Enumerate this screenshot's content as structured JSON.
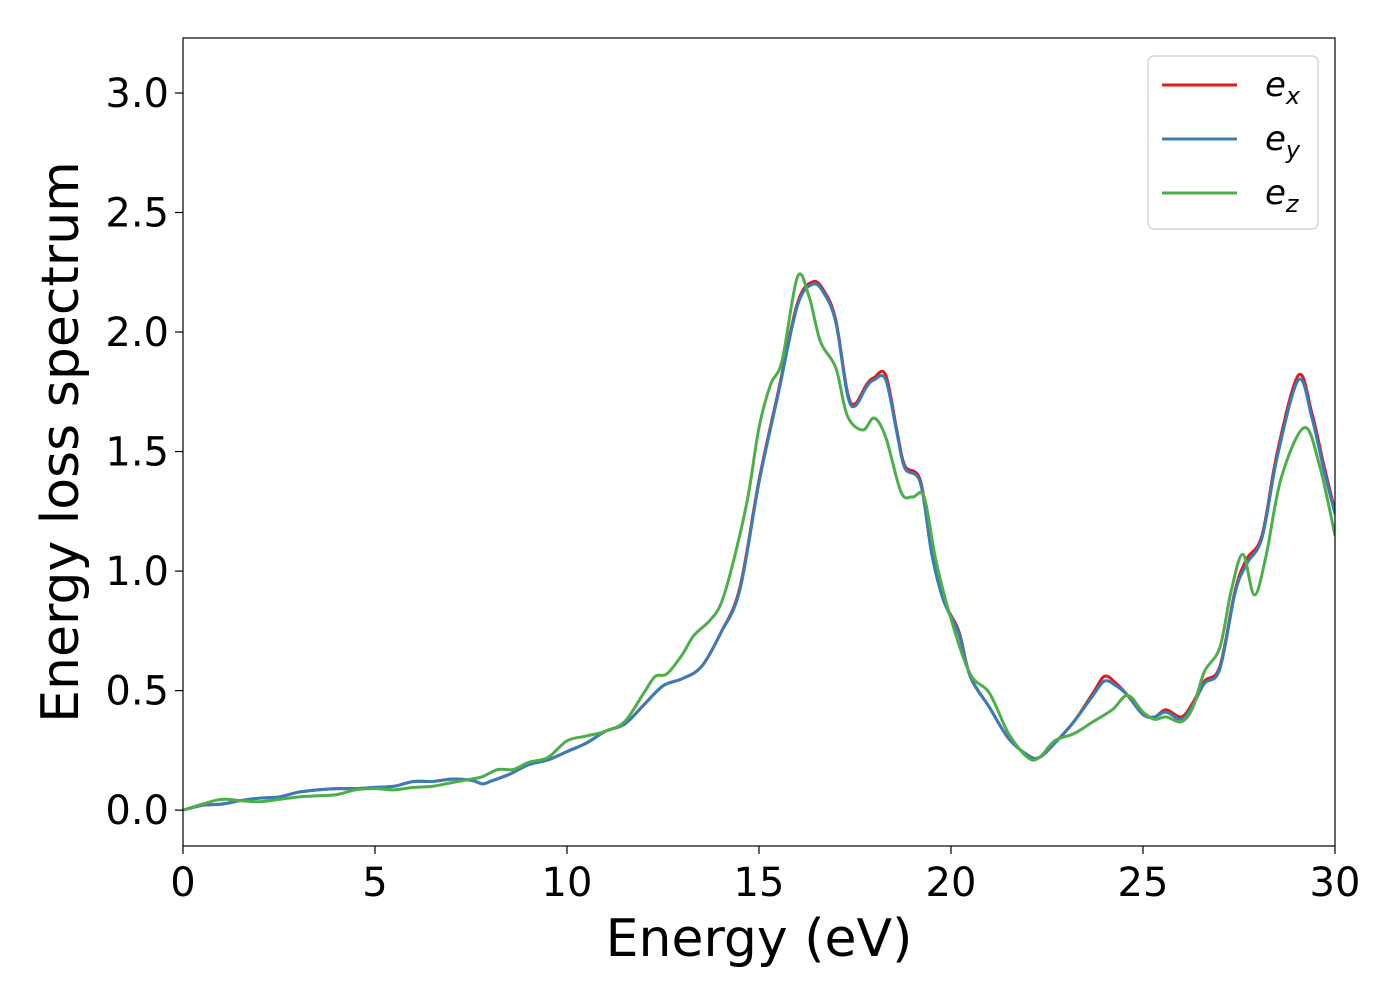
{
  "chart_data": {
    "type": "line",
    "title": "",
    "xlabel": "Energy (eV)",
    "ylabel": "Energy loss spectrum",
    "xlim": [
      0,
      30
    ],
    "ylim": [
      -0.15,
      3.23
    ],
    "xticks": [
      0,
      5,
      10,
      15,
      20,
      25,
      30
    ],
    "xtick_labels": [
      "0",
      "5",
      "10",
      "15",
      "20",
      "25",
      "30"
    ],
    "yticks": [
      0.0,
      0.5,
      1.0,
      1.5,
      2.0,
      2.5,
      3.0
    ],
    "ytick_labels": [
      "0.0",
      "0.5",
      "1.0",
      "1.5",
      "2.0",
      "2.5",
      "3.0"
    ],
    "grid": false,
    "legend_position": "top-right",
    "series": [
      {
        "name_base": "e",
        "name_sub": "x",
        "color": "#e41a1c",
        "points": [
          [
            0,
            0.0
          ],
          [
            0.5,
            0.02
          ],
          [
            1,
            0.025
          ],
          [
            1.5,
            0.04
          ],
          [
            2,
            0.05
          ],
          [
            2.5,
            0.055
          ],
          [
            3,
            0.075
          ],
          [
            3.5,
            0.085
          ],
          [
            4,
            0.09
          ],
          [
            4.5,
            0.09
          ],
          [
            5,
            0.095
          ],
          [
            5.5,
            0.1
          ],
          [
            6,
            0.12
          ],
          [
            6.5,
            0.12
          ],
          [
            7,
            0.13
          ],
          [
            7.5,
            0.125
          ],
          [
            7.8,
            0.11
          ],
          [
            8,
            0.12
          ],
          [
            8.5,
            0.15
          ],
          [
            9,
            0.19
          ],
          [
            9.5,
            0.21
          ],
          [
            10,
            0.245
          ],
          [
            10.5,
            0.28
          ],
          [
            11,
            0.33
          ],
          [
            11.5,
            0.36
          ],
          [
            12,
            0.44
          ],
          [
            12.5,
            0.52
          ],
          [
            13,
            0.55
          ],
          [
            13.5,
            0.6
          ],
          [
            14,
            0.74
          ],
          [
            14.5,
            0.93
          ],
          [
            15,
            1.38
          ],
          [
            15.5,
            1.75
          ],
          [
            16,
            2.12
          ],
          [
            16.4,
            2.21
          ],
          [
            16.7,
            2.17
          ],
          [
            17,
            2.05
          ],
          [
            17.3,
            1.75
          ],
          [
            17.5,
            1.7
          ],
          [
            17.8,
            1.78
          ],
          [
            18,
            1.81
          ],
          [
            18.3,
            1.82
          ],
          [
            18.6,
            1.58
          ],
          [
            18.8,
            1.44
          ],
          [
            19.2,
            1.38
          ],
          [
            19.5,
            1.08
          ],
          [
            19.8,
            0.88
          ],
          [
            20.2,
            0.75
          ],
          [
            20.5,
            0.56
          ],
          [
            21,
            0.43
          ],
          [
            21.5,
            0.3
          ],
          [
            22,
            0.23
          ],
          [
            22.3,
            0.22
          ],
          [
            22.7,
            0.28
          ],
          [
            23.2,
            0.37
          ],
          [
            23.7,
            0.49
          ],
          [
            24,
            0.56
          ],
          [
            24.3,
            0.53
          ],
          [
            24.6,
            0.48
          ],
          [
            25,
            0.4
          ],
          [
            25.3,
            0.39
          ],
          [
            25.6,
            0.42
          ],
          [
            26,
            0.39
          ],
          [
            26.3,
            0.45
          ],
          [
            26.6,
            0.54
          ],
          [
            27,
            0.6
          ],
          [
            27.4,
            0.92
          ],
          [
            27.7,
            1.05
          ],
          [
            28.1,
            1.15
          ],
          [
            28.5,
            1.5
          ],
          [
            29.05,
            1.82
          ],
          [
            29.4,
            1.66
          ],
          [
            29.7,
            1.45
          ],
          [
            30,
            1.25
          ]
        ]
      },
      {
        "name_base": "e",
        "name_sub": "y",
        "color": "#377eb8",
        "points": [
          [
            0,
            0.0
          ],
          [
            0.5,
            0.02
          ],
          [
            1,
            0.025
          ],
          [
            1.5,
            0.04
          ],
          [
            2,
            0.05
          ],
          [
            2.5,
            0.055
          ],
          [
            3,
            0.075
          ],
          [
            3.5,
            0.085
          ],
          [
            4,
            0.09
          ],
          [
            4.5,
            0.09
          ],
          [
            5,
            0.095
          ],
          [
            5.5,
            0.1
          ],
          [
            6,
            0.12
          ],
          [
            6.5,
            0.12
          ],
          [
            7,
            0.13
          ],
          [
            7.5,
            0.125
          ],
          [
            7.8,
            0.11
          ],
          [
            8,
            0.12
          ],
          [
            8.5,
            0.15
          ],
          [
            9,
            0.19
          ],
          [
            9.5,
            0.21
          ],
          [
            10,
            0.245
          ],
          [
            10.5,
            0.28
          ],
          [
            11,
            0.33
          ],
          [
            11.5,
            0.36
          ],
          [
            12,
            0.44
          ],
          [
            12.5,
            0.52
          ],
          [
            13,
            0.55
          ],
          [
            13.5,
            0.6
          ],
          [
            14,
            0.74
          ],
          [
            14.5,
            0.92
          ],
          [
            15,
            1.37
          ],
          [
            15.5,
            1.74
          ],
          [
            16,
            2.11
          ],
          [
            16.4,
            2.2
          ],
          [
            16.7,
            2.16
          ],
          [
            17,
            2.04
          ],
          [
            17.3,
            1.74
          ],
          [
            17.5,
            1.69
          ],
          [
            17.8,
            1.77
          ],
          [
            18,
            1.8
          ],
          [
            18.3,
            1.8
          ],
          [
            18.6,
            1.57
          ],
          [
            18.8,
            1.43
          ],
          [
            19.2,
            1.37
          ],
          [
            19.5,
            1.07
          ],
          [
            19.8,
            0.88
          ],
          [
            20.2,
            0.74
          ],
          [
            20.5,
            0.56
          ],
          [
            21,
            0.43
          ],
          [
            21.5,
            0.3
          ],
          [
            22,
            0.23
          ],
          [
            22.3,
            0.22
          ],
          [
            22.7,
            0.28
          ],
          [
            23.2,
            0.37
          ],
          [
            23.7,
            0.48
          ],
          [
            24,
            0.54
          ],
          [
            24.3,
            0.52
          ],
          [
            24.6,
            0.48
          ],
          [
            25,
            0.4
          ],
          [
            25.3,
            0.39
          ],
          [
            25.6,
            0.41
          ],
          [
            26,
            0.38
          ],
          [
            26.3,
            0.44
          ],
          [
            26.6,
            0.53
          ],
          [
            27,
            0.59
          ],
          [
            27.4,
            0.91
          ],
          [
            27.7,
            1.03
          ],
          [
            28.1,
            1.14
          ],
          [
            28.5,
            1.48
          ],
          [
            29.05,
            1.8
          ],
          [
            29.4,
            1.64
          ],
          [
            29.7,
            1.43
          ],
          [
            30,
            1.24
          ]
        ]
      },
      {
        "name_base": "e",
        "name_sub": "z",
        "color": "#4daf4a",
        "points": [
          [
            0,
            0.0
          ],
          [
            0.5,
            0.025
          ],
          [
            1,
            0.045
          ],
          [
            1.5,
            0.04
          ],
          [
            2,
            0.035
          ],
          [
            2.5,
            0.045
          ],
          [
            3,
            0.055
          ],
          [
            3.5,
            0.06
          ],
          [
            4,
            0.065
          ],
          [
            4.5,
            0.085
          ],
          [
            5,
            0.09
          ],
          [
            5.5,
            0.085
          ],
          [
            6,
            0.095
          ],
          [
            6.5,
            0.1
          ],
          [
            7,
            0.115
          ],
          [
            7.5,
            0.13
          ],
          [
            7.8,
            0.14
          ],
          [
            8.2,
            0.17
          ],
          [
            8.6,
            0.17
          ],
          [
            9,
            0.2
          ],
          [
            9.5,
            0.22
          ],
          [
            10,
            0.29
          ],
          [
            10.5,
            0.31
          ],
          [
            11,
            0.33
          ],
          [
            11.5,
            0.37
          ],
          [
            12,
            0.49
          ],
          [
            12.3,
            0.56
          ],
          [
            12.6,
            0.57
          ],
          [
            13,
            0.65
          ],
          [
            13.3,
            0.73
          ],
          [
            13.7,
            0.79
          ],
          [
            14,
            0.86
          ],
          [
            14.3,
            1.02
          ],
          [
            14.7,
            1.3
          ],
          [
            15,
            1.6
          ],
          [
            15.3,
            1.78
          ],
          [
            15.6,
            1.88
          ],
          [
            16,
            2.23
          ],
          [
            16.3,
            2.15
          ],
          [
            16.6,
            1.96
          ],
          [
            17,
            1.85
          ],
          [
            17.3,
            1.65
          ],
          [
            17.7,
            1.59
          ],
          [
            18,
            1.64
          ],
          [
            18.3,
            1.56
          ],
          [
            18.7,
            1.33
          ],
          [
            19,
            1.31
          ],
          [
            19.3,
            1.31
          ],
          [
            19.6,
            1.05
          ],
          [
            20,
            0.8
          ],
          [
            20.5,
            0.57
          ],
          [
            21,
            0.49
          ],
          [
            21.5,
            0.32
          ],
          [
            22,
            0.22
          ],
          [
            22.3,
            0.22
          ],
          [
            22.7,
            0.29
          ],
          [
            23.2,
            0.32
          ],
          [
            23.7,
            0.37
          ],
          [
            24.2,
            0.42
          ],
          [
            24.6,
            0.48
          ],
          [
            25,
            0.41
          ],
          [
            25.3,
            0.38
          ],
          [
            25.6,
            0.39
          ],
          [
            26,
            0.37
          ],
          [
            26.3,
            0.43
          ],
          [
            26.6,
            0.58
          ],
          [
            27,
            0.68
          ],
          [
            27.3,
            0.92
          ],
          [
            27.6,
            1.07
          ],
          [
            27.9,
            0.9
          ],
          [
            28.2,
            1.06
          ],
          [
            28.6,
            1.39
          ],
          [
            29.2,
            1.6
          ],
          [
            29.6,
            1.44
          ],
          [
            30,
            1.15
          ]
        ]
      }
    ]
  }
}
